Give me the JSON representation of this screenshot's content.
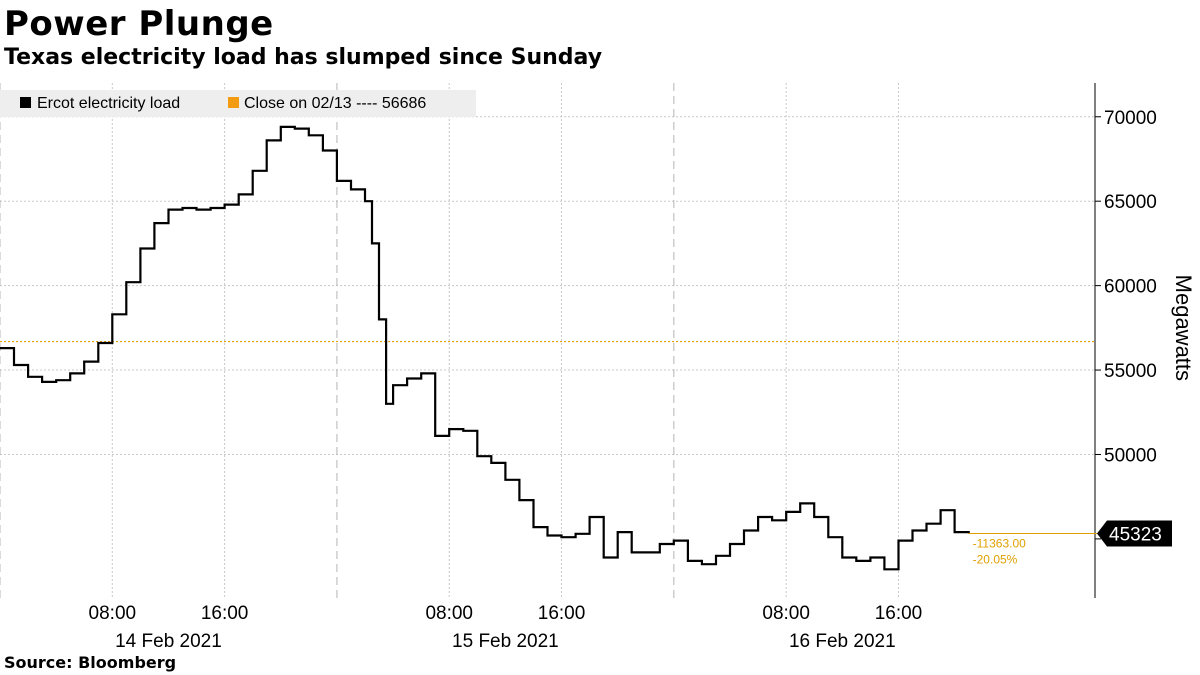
{
  "header": {
    "title": "Power Plunge",
    "subtitle": "Texas electricity load has slumped since Sunday"
  },
  "footer": {
    "source": "Source: Bloomberg"
  },
  "legend": {
    "series_label": "Ercot electricity load",
    "close_label": "Close on 02/13 ---- 56686"
  },
  "annotations": {
    "last_value": "45323",
    "change_abs": "-11363.00",
    "change_pct": "-20.05%"
  },
  "colors": {
    "series": "#000000",
    "reference": "#e0a100",
    "grid": "#c8c8c8",
    "legend_bg": "#eeeeee"
  },
  "chart_data": {
    "type": "line",
    "title": "Power Plunge",
    "subtitle": "Texas electricity load has slumped since Sunday",
    "ylabel": "Megawatts",
    "ylim": [
      41500,
      72000
    ],
    "yticks": [
      50000,
      55000,
      60000,
      65000,
      70000
    ],
    "xlim": [
      "2021-02-14 00:00",
      "2021-02-17 06:00"
    ],
    "x_ticks": [
      {
        "label": "08:00",
        "t": "2021-02-14 08:00"
      },
      {
        "label": "16:00",
        "t": "2021-02-14 16:00"
      },
      {
        "label": "08:00",
        "t": "2021-02-15 08:00"
      },
      {
        "label": "16:00",
        "t": "2021-02-15 16:00"
      },
      {
        "label": "08:00",
        "t": "2021-02-16 08:00"
      },
      {
        "label": "16:00",
        "t": "2021-02-16 16:00"
      }
    ],
    "day_labels": [
      {
        "label": "14 Feb 2021",
        "t": "2021-02-14 12:00"
      },
      {
        "label": "15 Feb 2021",
        "t": "2021-02-15 12:00"
      },
      {
        "label": "16 Feb 2021",
        "t": "2021-02-16 12:00"
      }
    ],
    "day_boundaries": [
      "2021-02-14 00:00",
      "2021-02-15 00:00",
      "2021-02-16 00:00"
    ],
    "reference_line": {
      "label": "Close on 02/13",
      "value": 56686
    },
    "last_value": 45323,
    "grid": true,
    "legend_position": "top-left",
    "series": [
      {
        "name": "Ercot electricity load",
        "points": [
          [
            "2021-02-14 00:00",
            56300
          ],
          [
            "2021-02-14 01:00",
            55300
          ],
          [
            "2021-02-14 02:00",
            54600
          ],
          [
            "2021-02-14 03:00",
            54300
          ],
          [
            "2021-02-14 04:00",
            54400
          ],
          [
            "2021-02-14 05:00",
            54800
          ],
          [
            "2021-02-14 06:00",
            55500
          ],
          [
            "2021-02-14 07:00",
            56600
          ],
          [
            "2021-02-14 08:00",
            58300
          ],
          [
            "2021-02-14 09:00",
            60200
          ],
          [
            "2021-02-14 10:00",
            62200
          ],
          [
            "2021-02-14 11:00",
            63700
          ],
          [
            "2021-02-14 12:00",
            64500
          ],
          [
            "2021-02-14 13:00",
            64600
          ],
          [
            "2021-02-14 14:00",
            64500
          ],
          [
            "2021-02-14 15:00",
            64600
          ],
          [
            "2021-02-14 16:00",
            64800
          ],
          [
            "2021-02-14 17:00",
            65400
          ],
          [
            "2021-02-14 18:00",
            66800
          ],
          [
            "2021-02-14 19:00",
            68600
          ],
          [
            "2021-02-14 20:00",
            69400
          ],
          [
            "2021-02-14 21:00",
            69300
          ],
          [
            "2021-02-14 22:00",
            68900
          ],
          [
            "2021-02-14 23:00",
            68000
          ],
          [
            "2021-02-15 00:00",
            66200
          ],
          [
            "2021-02-15 01:00",
            65700
          ],
          [
            "2021-02-15 02:00",
            65000
          ],
          [
            "2021-02-15 02:30",
            62500
          ],
          [
            "2021-02-15 03:00",
            58000
          ],
          [
            "2021-02-15 03:30",
            53000
          ],
          [
            "2021-02-15 04:00",
            54100
          ],
          [
            "2021-02-15 05:00",
            54500
          ],
          [
            "2021-02-15 06:00",
            54800
          ],
          [
            "2021-02-15 07:00",
            51100
          ],
          [
            "2021-02-15 08:00",
            51500
          ],
          [
            "2021-02-15 09:00",
            51400
          ],
          [
            "2021-02-15 10:00",
            49900
          ],
          [
            "2021-02-15 11:00",
            49500
          ],
          [
            "2021-02-15 12:00",
            48500
          ],
          [
            "2021-02-15 13:00",
            47300
          ],
          [
            "2021-02-15 14:00",
            45700
          ],
          [
            "2021-02-15 15:00",
            45200
          ],
          [
            "2021-02-15 16:00",
            45100
          ],
          [
            "2021-02-15 17:00",
            45300
          ],
          [
            "2021-02-15 18:00",
            46300
          ],
          [
            "2021-02-15 19:00",
            43900
          ],
          [
            "2021-02-15 20:00",
            45400
          ],
          [
            "2021-02-15 21:00",
            44200
          ],
          [
            "2021-02-15 22:00",
            44200
          ],
          [
            "2021-02-15 23:00",
            44700
          ],
          [
            "2021-02-16 00:00",
            44900
          ],
          [
            "2021-02-16 01:00",
            43700
          ],
          [
            "2021-02-16 02:00",
            43500
          ],
          [
            "2021-02-16 03:00",
            44000
          ],
          [
            "2021-02-16 04:00",
            44700
          ],
          [
            "2021-02-16 05:00",
            45500
          ],
          [
            "2021-02-16 06:00",
            46300
          ],
          [
            "2021-02-16 07:00",
            46100
          ],
          [
            "2021-02-16 08:00",
            46600
          ],
          [
            "2021-02-16 09:00",
            47100
          ],
          [
            "2021-02-16 10:00",
            46300
          ],
          [
            "2021-02-16 11:00",
            45100
          ],
          [
            "2021-02-16 12:00",
            43900
          ],
          [
            "2021-02-16 13:00",
            43700
          ],
          [
            "2021-02-16 14:00",
            43900
          ],
          [
            "2021-02-16 15:00",
            43200
          ],
          [
            "2021-02-16 16:00",
            44900
          ],
          [
            "2021-02-16 17:00",
            45500
          ],
          [
            "2021-02-16 18:00",
            45900
          ],
          [
            "2021-02-16 19:00",
            46700
          ],
          [
            "2021-02-16 20:00",
            45400
          ],
          [
            "2021-02-16 21:00",
            45323
          ]
        ]
      }
    ]
  }
}
